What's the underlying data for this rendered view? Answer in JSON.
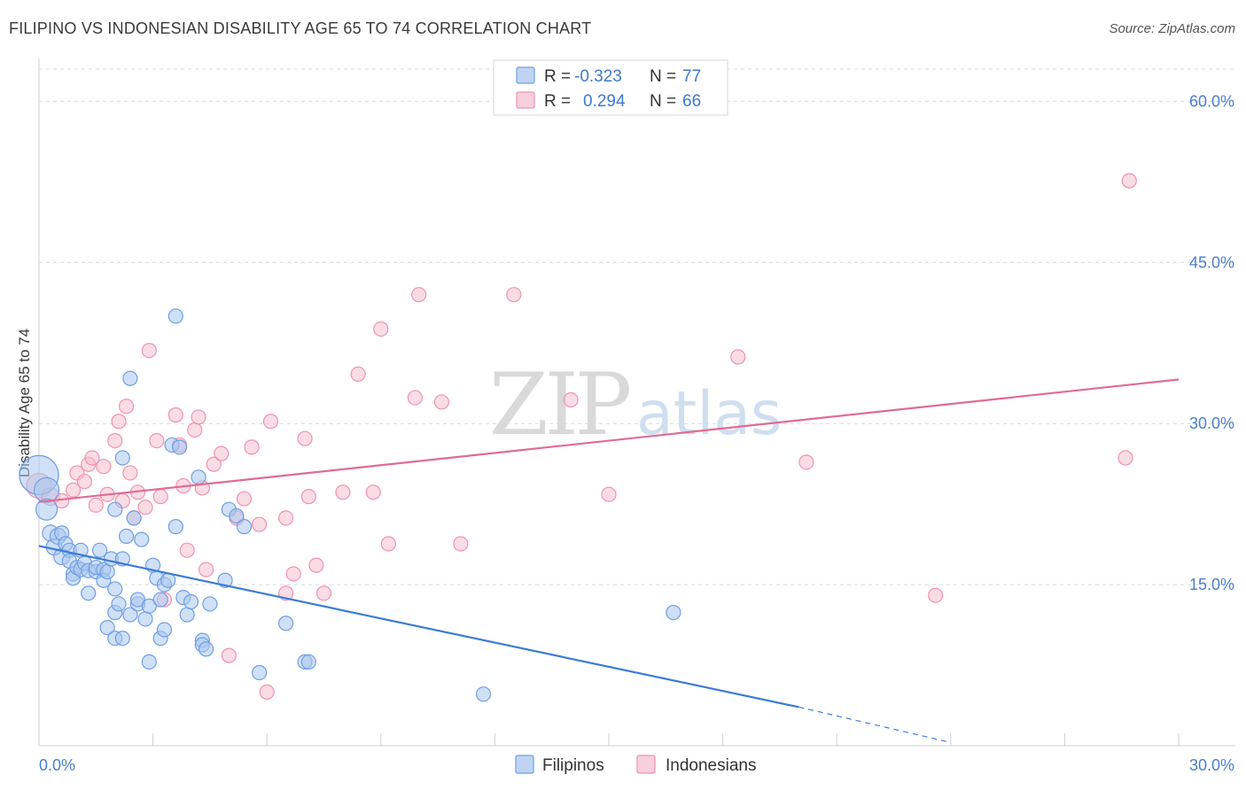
{
  "title": "FILIPINO VS INDONESIAN DISABILITY AGE 65 TO 74 CORRELATION CHART",
  "source": "Source: ZipAtlas.com",
  "watermark": {
    "zip": "ZIP",
    "atlas": "atlas"
  },
  "colors": {
    "filipinos": "#6f9fe3",
    "filipinos_fill": "#a9c6ef",
    "filipinos_line": "#3c7bd6",
    "indonesians": "#ef93ae",
    "indonesians_fill": "#f5bfd0",
    "indonesians_line": "#e06b95",
    "grid": "#d9d9d9",
    "tick_text": "#4a7fd0"
  },
  "legend": {
    "rows": [
      {
        "r_label": "R = ",
        "r_value": "-0.323",
        "n_label": "N = ",
        "n_value": "77"
      },
      {
        "r_label": "R = ",
        "r_value": "0.294",
        "n_label": "N = ",
        "n_value": "66"
      }
    ]
  },
  "chart_data": {
    "type": "scatter",
    "title": "FILIPINO VS INDONESIAN DISABILITY AGE 65 TO 74 CORRELATION CHART",
    "xlabel": "",
    "ylabel": "Disability Age 65 to 74",
    "xlim": [
      0,
      30
    ],
    "ylim": [
      0,
      63
    ],
    "x_tick_labels": [
      "0.0%",
      "30.0%"
    ],
    "y_ticks": [
      15,
      30,
      45,
      60
    ],
    "y_tick_labels": [
      "15.0%",
      "30.0%",
      "45.0%",
      "60.0%"
    ],
    "legend_position": "top-center",
    "series": [
      {
        "name": "Filipinos",
        "r": -0.323,
        "n": 77,
        "trend": {
          "x0": 0,
          "y0": 18.6,
          "x1": 20,
          "y1": 3.6,
          "dash_to_x": 24,
          "dash_to_y": 0.3
        },
        "points": [
          [
            0.0,
            25.2,
            22
          ],
          [
            0.2,
            23.8,
            14
          ],
          [
            0.2,
            22.0,
            12
          ],
          [
            0.3,
            19.8,
            9
          ],
          [
            0.4,
            18.5,
            9
          ],
          [
            0.5,
            19.5,
            9
          ],
          [
            0.6,
            19.8,
            8
          ],
          [
            0.6,
            17.6,
            9
          ],
          [
            0.7,
            18.8,
            8
          ],
          [
            0.8,
            18.2,
            8
          ],
          [
            0.8,
            17.2,
            8
          ],
          [
            0.9,
            16.0,
            8
          ],
          [
            0.9,
            15.6,
            8
          ],
          [
            1.0,
            16.6,
            8
          ],
          [
            1.1,
            18.2,
            8
          ],
          [
            1.1,
            16.4,
            8
          ],
          [
            1.2,
            17.0,
            8
          ],
          [
            1.3,
            14.2,
            8
          ],
          [
            1.3,
            16.3,
            8
          ],
          [
            1.5,
            16.2,
            8
          ],
          [
            1.5,
            16.6,
            8
          ],
          [
            1.6,
            18.2,
            8
          ],
          [
            1.7,
            16.4,
            8
          ],
          [
            1.7,
            15.4,
            8
          ],
          [
            1.8,
            16.2,
            8
          ],
          [
            1.9,
            17.4,
            8
          ],
          [
            2.0,
            14.6,
            8
          ],
          [
            2.0,
            22.0,
            8
          ],
          [
            1.8,
            11.0,
            8
          ],
          [
            2.0,
            12.4,
            8
          ],
          [
            2.0,
            10.0,
            8
          ],
          [
            2.1,
            13.2,
            8
          ],
          [
            2.2,
            10.0,
            8
          ],
          [
            2.2,
            17.4,
            8
          ],
          [
            2.2,
            26.8,
            8
          ],
          [
            2.3,
            19.5,
            8
          ],
          [
            2.4,
            12.2,
            8
          ],
          [
            2.4,
            34.2,
            8
          ],
          [
            2.6,
            13.2,
            8
          ],
          [
            2.5,
            21.2,
            8
          ],
          [
            2.6,
            13.6,
            8
          ],
          [
            2.7,
            19.2,
            8
          ],
          [
            2.8,
            11.8,
            8
          ],
          [
            2.9,
            13.0,
            8
          ],
          [
            2.9,
            7.8,
            8
          ],
          [
            3.0,
            16.8,
            8
          ],
          [
            3.1,
            15.6,
            8
          ],
          [
            3.2,
            13.6,
            8
          ],
          [
            3.2,
            10.0,
            8
          ],
          [
            3.3,
            10.8,
            8
          ],
          [
            3.3,
            15.0,
            8
          ],
          [
            3.4,
            15.4,
            8
          ],
          [
            3.5,
            28.0,
            8
          ],
          [
            3.6,
            20.4,
            8
          ],
          [
            3.6,
            40.0,
            8
          ],
          [
            3.7,
            27.8,
            8
          ],
          [
            3.8,
            13.8,
            8
          ],
          [
            3.9,
            12.2,
            8
          ],
          [
            4.0,
            13.4,
            8
          ],
          [
            4.2,
            25.0,
            8
          ],
          [
            4.3,
            9.8,
            8
          ],
          [
            4.3,
            9.4,
            8
          ],
          [
            4.4,
            9.0,
            8
          ],
          [
            4.5,
            13.2,
            8
          ],
          [
            4.9,
            15.4,
            8
          ],
          [
            5.0,
            22.0,
            8
          ],
          [
            5.2,
            21.4,
            8
          ],
          [
            5.4,
            20.4,
            8
          ],
          [
            5.8,
            6.8,
            8
          ],
          [
            6.5,
            11.4,
            8
          ],
          [
            7.0,
            7.8,
            8
          ],
          [
            7.1,
            7.8,
            8
          ],
          [
            11.7,
            4.8,
            8
          ],
          [
            16.7,
            12.4,
            8
          ]
        ]
      },
      {
        "name": "Indonesians",
        "r": 0.294,
        "n": 66,
        "trend": {
          "x0": 0,
          "y0": 22.7,
          "x1": 30,
          "y1": 34.1
        },
        "points": [
          [
            0.0,
            24.2,
            14
          ],
          [
            0.3,
            23.2,
            10
          ],
          [
            0.6,
            22.8,
            8
          ],
          [
            0.9,
            23.8,
            8
          ],
          [
            1.0,
            25.4,
            8
          ],
          [
            1.2,
            24.6,
            8
          ],
          [
            1.3,
            26.2,
            8
          ],
          [
            1.4,
            26.8,
            8
          ],
          [
            1.5,
            22.4,
            8
          ],
          [
            1.7,
            26.0,
            8
          ],
          [
            1.8,
            23.4,
            8
          ],
          [
            2.0,
            28.4,
            8
          ],
          [
            2.1,
            30.2,
            8
          ],
          [
            2.2,
            22.8,
            8
          ],
          [
            2.3,
            31.6,
            8
          ],
          [
            2.4,
            25.4,
            8
          ],
          [
            2.5,
            21.2,
            8
          ],
          [
            2.6,
            23.6,
            8
          ],
          [
            2.8,
            22.2,
            8
          ],
          [
            2.9,
            36.8,
            8
          ],
          [
            3.1,
            28.4,
            8
          ],
          [
            3.2,
            23.2,
            8
          ],
          [
            3.3,
            13.6,
            8
          ],
          [
            3.6,
            30.8,
            8
          ],
          [
            3.7,
            28.0,
            8
          ],
          [
            3.8,
            24.2,
            8
          ],
          [
            3.9,
            18.2,
            8
          ],
          [
            4.1,
            29.4,
            8
          ],
          [
            4.2,
            30.6,
            8
          ],
          [
            4.3,
            24.0,
            8
          ],
          [
            4.4,
            16.4,
            8
          ],
          [
            4.6,
            26.2,
            8
          ],
          [
            4.8,
            27.2,
            8
          ],
          [
            5.0,
            8.4,
            8
          ],
          [
            5.2,
            21.2,
            8
          ],
          [
            5.4,
            23.0,
            8
          ],
          [
            5.6,
            27.8,
            8
          ],
          [
            5.8,
            20.6,
            8
          ],
          [
            6.0,
            5.0,
            8
          ],
          [
            6.1,
            30.2,
            8
          ],
          [
            6.5,
            21.2,
            8
          ],
          [
            6.5,
            14.2,
            8
          ],
          [
            6.7,
            16.0,
            8
          ],
          [
            7.0,
            28.6,
            8
          ],
          [
            7.1,
            23.2,
            8
          ],
          [
            7.3,
            16.8,
            8
          ],
          [
            7.5,
            14.2,
            8
          ],
          [
            8.0,
            23.6,
            8
          ],
          [
            8.4,
            34.6,
            8
          ],
          [
            8.8,
            23.6,
            8
          ],
          [
            9.0,
            38.8,
            8
          ],
          [
            9.2,
            18.8,
            8
          ],
          [
            9.9,
            32.4,
            8
          ],
          [
            10.0,
            42.0,
            8
          ],
          [
            10.6,
            32.0,
            8
          ],
          [
            11.1,
            18.8,
            8
          ],
          [
            12.5,
            42.0,
            8
          ],
          [
            14.0,
            32.2,
            8
          ],
          [
            15.0,
            23.4,
            8
          ],
          [
            18.4,
            36.2,
            8
          ],
          [
            20.2,
            26.4,
            8
          ],
          [
            23.6,
            14.0,
            8
          ],
          [
            28.6,
            26.8,
            8
          ],
          [
            28.7,
            52.6,
            8
          ]
        ]
      }
    ]
  },
  "bottom_legend": [
    {
      "label": "Filipinos"
    },
    {
      "label": "Indonesians"
    }
  ]
}
